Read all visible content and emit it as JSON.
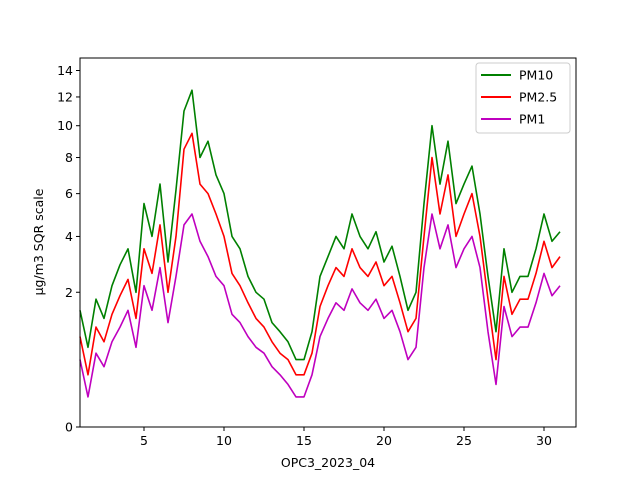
{
  "chart_data": {
    "type": "line",
    "title": "",
    "xlabel": "OPC3_2023_04",
    "ylabel": "µg/m3 SQR scale",
    "y_scale": "sqrt",
    "xlim": [
      1,
      32
    ],
    "ylim": [
      0,
      15
    ],
    "x_ticks": [
      5,
      10,
      15,
      20,
      25,
      30
    ],
    "y_ticks": [
      0,
      2,
      4,
      6,
      8,
      10,
      12,
      14
    ],
    "grid": false,
    "legend_position": "top-right",
    "x": [
      1.0,
      1.5,
      2.0,
      2.5,
      3.0,
      3.5,
      4.0,
      4.5,
      5.0,
      5.5,
      6.0,
      6.5,
      7.0,
      7.5,
      8.0,
      8.5,
      9.0,
      9.5,
      10.0,
      10.5,
      11.0,
      11.5,
      12.0,
      12.5,
      13.0,
      13.5,
      14.0,
      14.5,
      15.0,
      15.5,
      16.0,
      16.5,
      17.0,
      17.5,
      18.0,
      18.5,
      19.0,
      19.5,
      20.0,
      20.5,
      21.0,
      21.5,
      22.0,
      22.5,
      23.0,
      23.5,
      24.0,
      24.5,
      25.0,
      25.5,
      26.0,
      26.5,
      27.0,
      27.5,
      28.0,
      28.5,
      29.0,
      29.5,
      30.0,
      30.5,
      31.0
    ],
    "series": [
      {
        "name": "PM10",
        "color": "#008000",
        "values": [
          1.5,
          0.7,
          1.8,
          1.3,
          2.2,
          2.9,
          3.5,
          2.0,
          5.5,
          4.0,
          6.5,
          3.0,
          6.2,
          11.0,
          12.5,
          8.0,
          9.0,
          7.0,
          6.0,
          4.0,
          3.5,
          2.5,
          2.0,
          1.8,
          1.2,
          1.0,
          0.8,
          0.5,
          0.5,
          1.0,
          2.5,
          3.2,
          4.0,
          3.5,
          5.0,
          4.0,
          3.5,
          4.2,
          3.0,
          3.6,
          2.5,
          1.5,
          2.0,
          5.5,
          10.0,
          6.5,
          9.0,
          5.5,
          6.5,
          7.5,
          5.0,
          2.5,
          1.0,
          3.5,
          2.0,
          2.5,
          2.5,
          3.5,
          5.0,
          3.8,
          4.2
        ]
      },
      {
        "name": "PM2.5",
        "color": "#ff0000",
        "values": [
          0.9,
          0.3,
          1.1,
          0.8,
          1.4,
          1.9,
          2.4,
          1.3,
          3.5,
          2.6,
          4.5,
          2.0,
          4.0,
          8.5,
          9.5,
          6.5,
          6.0,
          5.0,
          4.0,
          2.6,
          2.2,
          1.7,
          1.3,
          1.1,
          0.8,
          0.6,
          0.5,
          0.3,
          0.3,
          0.6,
          1.6,
          2.2,
          2.8,
          2.5,
          3.5,
          2.8,
          2.5,
          3.0,
          2.2,
          2.5,
          1.7,
          1.0,
          1.3,
          4.0,
          8.0,
          5.0,
          7.0,
          4.0,
          5.0,
          6.0,
          4.0,
          1.8,
          0.5,
          2.5,
          1.4,
          1.8,
          1.8,
          2.6,
          3.8,
          2.8,
          3.2
        ]
      },
      {
        "name": "PM1",
        "color": "#bf00bf",
        "values": [
          0.5,
          0.1,
          0.6,
          0.4,
          0.8,
          1.1,
          1.5,
          0.7,
          2.2,
          1.5,
          2.8,
          1.2,
          2.5,
          4.5,
          5.0,
          3.8,
          3.2,
          2.5,
          2.2,
          1.4,
          1.2,
          0.9,
          0.7,
          0.6,
          0.4,
          0.3,
          0.2,
          0.1,
          0.1,
          0.3,
          0.9,
          1.3,
          1.7,
          1.5,
          2.1,
          1.7,
          1.5,
          1.8,
          1.3,
          1.5,
          1.0,
          0.5,
          0.7,
          2.8,
          5.0,
          3.5,
          4.5,
          2.8,
          3.5,
          4.0,
          2.8,
          1.0,
          0.2,
          1.6,
          0.9,
          1.1,
          1.1,
          1.7,
          2.6,
          1.9,
          2.2
        ]
      }
    ]
  }
}
